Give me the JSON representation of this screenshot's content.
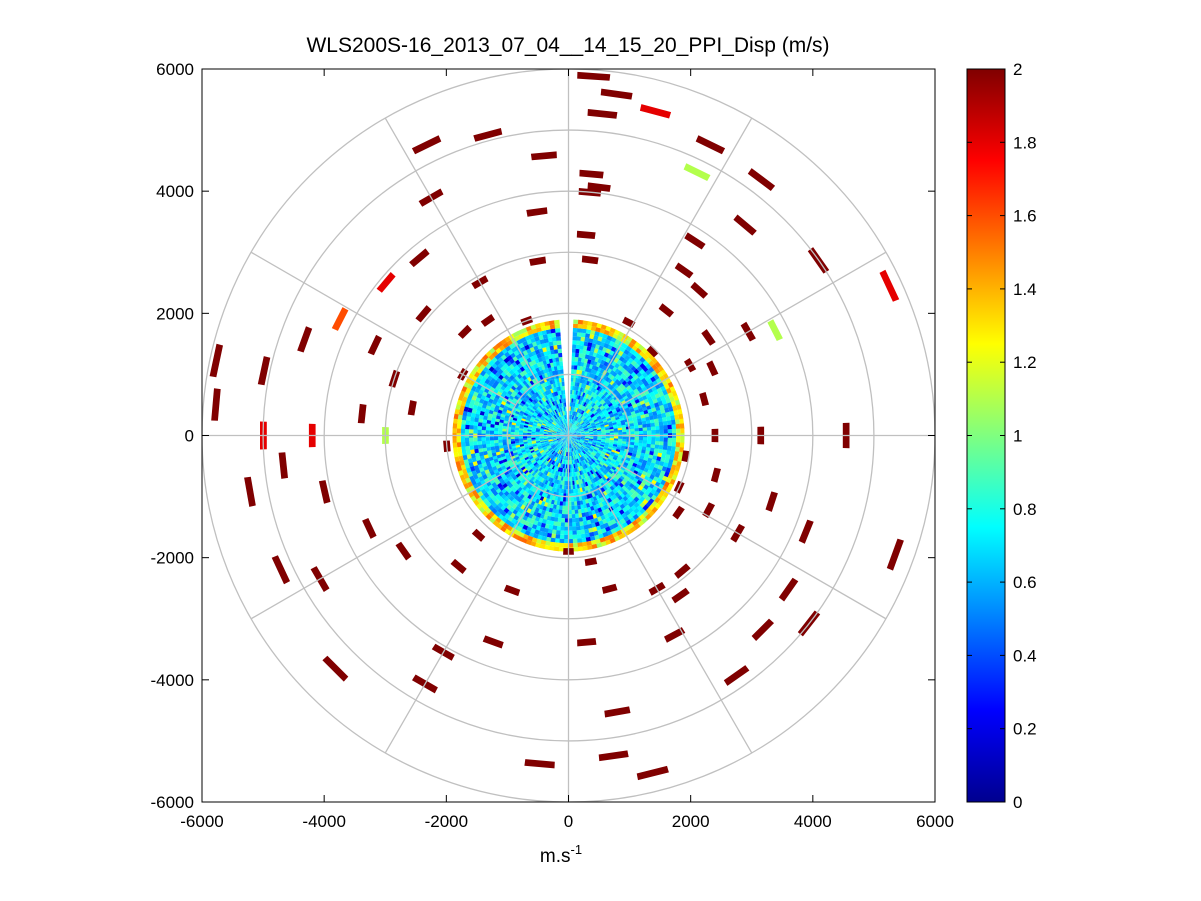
{
  "chart_data": {
    "type": "heatmap",
    "subtype": "polar PPI (plan position indicator) scan",
    "title": "WLS200S-16_2013_07_04__14_15_20_PPI_Disp (m/s)",
    "xlabel": "m.s",
    "xlabel_superscript": "-1",
    "ylabel": "",
    "xlim": [
      -6000,
      6000
    ],
    "ylim": [
      -6000,
      6000
    ],
    "x_ticks": [
      "-6000",
      "-4000",
      "-2000",
      "0",
      "2000",
      "4000",
      "6000"
    ],
    "y_ticks": [
      "6000",
      "4000",
      "2000",
      "0",
      "-2000",
      "-4000",
      "-6000"
    ],
    "polar_grid": {
      "range_rings": [
        1000,
        2000,
        3000,
        4000,
        5000,
        6000
      ],
      "spoke_angles_deg": [
        0,
        30,
        60,
        90,
        120,
        150,
        180,
        210,
        240,
        270,
        300,
        330
      ],
      "grid": true
    },
    "colorbar": {
      "colormap": "jet",
      "clim": [
        0,
        2
      ],
      "ticks": [
        "0",
        "0.2",
        "0.4",
        "0.6",
        "0.8",
        "1",
        "1.2",
        "1.4",
        "1.6",
        "1.8",
        "2"
      ],
      "placement": "right"
    },
    "data_summary": {
      "dense_region_radius": [
        0,
        1900
      ],
      "dense_region_dominant_value": 0.7,
      "dense_region_edge_value": 1.3,
      "outer_region_sparse_value": 2.0
    },
    "sparse_gates": [
      {
        "r": 5900,
        "az": 4,
        "v": 2.0
      },
      {
        "r": 5650,
        "az": 8,
        "v": 2.0
      },
      {
        "r": 5300,
        "az": 6,
        "v": 2.0
      },
      {
        "r": 5500,
        "az": 15,
        "v": 1.8
      },
      {
        "r": 5300,
        "az": 26,
        "v": 2.0
      },
      {
        "r": 5250,
        "az": 37,
        "v": 2.0
      },
      {
        "r": 4800,
        "az": 26,
        "v": 1.1
      },
      {
        "r": 4500,
        "az": 40,
        "v": 2.0
      },
      {
        "r": 5000,
        "az": 55,
        "v": 2.0
      },
      {
        "r": 5800,
        "az": 65,
        "v": 1.8
      },
      {
        "r": 3800,
        "az": 63,
        "v": 1.1
      },
      {
        "r": 4300,
        "az": 5,
        "v": 2.0
      },
      {
        "r": 4100,
        "az": 7,
        "v": 2.0
      },
      {
        "r": 3300,
        "az": 5,
        "v": 2.0
      },
      {
        "r": 2900,
        "az": 7,
        "v": 2.0
      },
      {
        "r": 3800,
        "az": 33,
        "v": 2.0
      },
      {
        "r": 3300,
        "az": 35,
        "v": 2.0
      },
      {
        "r": 3200,
        "az": 42,
        "v": 2.0
      },
      {
        "r": 2600,
        "az": 38,
        "v": 2.0
      },
      {
        "r": 2100,
        "az": 28,
        "v": 2.0
      },
      {
        "r": 2800,
        "az": 55,
        "v": 2.0
      },
      {
        "r": 3400,
        "az": 60,
        "v": 2.0
      },
      {
        "r": 2600,
        "az": 65,
        "v": 2.0
      },
      {
        "r": 2300,
        "az": 75,
        "v": 2.0
      },
      {
        "r": 4550,
        "az": 90,
        "v": 2.0
      },
      {
        "r": 3150,
        "az": 90,
        "v": 2.0
      },
      {
        "r": 2400,
        "az": 90,
        "v": 2.0
      },
      {
        "r": 4000,
        "az": 5,
        "v": 2.0
      },
      {
        "r": 5100,
        "az": -15,
        "v": 2.0
      },
      {
        "r": 5300,
        "az": -26,
        "v": 2.0
      },
      {
        "r": 4500,
        "az": -30,
        "v": 2.0
      },
      {
        "r": 3800,
        "az": -40,
        "v": 2.0
      },
      {
        "r": 3900,
        "az": -50,
        "v": 1.8
      },
      {
        "r": 2900,
        "az": -30,
        "v": 2.0
      },
      {
        "r": 2400,
        "az": -45,
        "v": 2.0
      },
      {
        "r": 2000,
        "az": -60,
        "v": 2.0
      },
      {
        "r": 4200,
        "az": -63,
        "v": 1.6
      },
      {
        "r": 3500,
        "az": -65,
        "v": 2.0
      },
      {
        "r": 3000,
        "az": -72,
        "v": 2.0
      },
      {
        "r": 4600,
        "az": -70,
        "v": 2.0
      },
      {
        "r": 5100,
        "az": -78,
        "v": 2.0
      },
      {
        "r": 5800,
        "az": -85,
        "v": 2.0
      },
      {
        "r": 5900,
        "az": -78,
        "v": 2.0
      },
      {
        "r": 3400,
        "az": -84,
        "v": 2.0
      },
      {
        "r": 2600,
        "az": -80,
        "v": 2.0
      },
      {
        "r": 5000,
        "az": -90,
        "v": 1.8
      },
      {
        "r": 4200,
        "az": -90,
        "v": 1.8
      },
      {
        "r": 3000,
        "az": -90,
        "v": 1.1
      },
      {
        "r": 4700,
        "az": -96,
        "v": 2.0
      },
      {
        "r": 5300,
        "az": -100,
        "v": 2.0
      },
      {
        "r": 4100,
        "az": -103,
        "v": 2.0
      },
      {
        "r": 5200,
        "az": -115,
        "v": 2.0
      },
      {
        "r": 4700,
        "az": -120,
        "v": 2.0
      },
      {
        "r": 3600,
        "az": -115,
        "v": 2.0
      },
      {
        "r": 3300,
        "az": -125,
        "v": 2.0
      },
      {
        "r": 2800,
        "az": -140,
        "v": 2.0
      },
      {
        "r": 2200,
        "az": -138,
        "v": 2.0
      },
      {
        "r": 5400,
        "az": -135,
        "v": 2.0
      },
      {
        "r": 4700,
        "az": -150,
        "v": 2.0
      },
      {
        "r": 4100,
        "az": -150,
        "v": 2.0
      },
      {
        "r": 3600,
        "az": -160,
        "v": 2.0
      },
      {
        "r": 2700,
        "az": -160,
        "v": 2.0
      },
      {
        "r": 5400,
        "az": -175,
        "v": 2.0
      },
      {
        "r": 5300,
        "az": 172,
        "v": 2.0
      },
      {
        "r": 5700,
        "az": 166,
        "v": 2.0
      },
      {
        "r": 4600,
        "az": 170,
        "v": 2.0
      },
      {
        "r": 3400,
        "az": 175,
        "v": 2.0
      },
      {
        "r": 2600,
        "az": 165,
        "v": 2.0
      },
      {
        "r": 2100,
        "az": 170,
        "v": 2.0
      },
      {
        "r": 3700,
        "az": 152,
        "v": 2.0
      },
      {
        "r": 3200,
        "az": 145,
        "v": 2.0
      },
      {
        "r": 2900,
        "az": 140,
        "v": 2.0
      },
      {
        "r": 4500,
        "az": 135,
        "v": 2.0
      },
      {
        "r": 5000,
        "az": 128,
        "v": 2.0
      },
      {
        "r": 4400,
        "az": 125,
        "v": 2.0
      },
      {
        "r": 3200,
        "az": 120,
        "v": 2.0
      },
      {
        "r": 2600,
        "az": 118,
        "v": 2.0
      },
      {
        "r": 2200,
        "az": 125,
        "v": 2.0
      },
      {
        "r": 3500,
        "az": 108,
        "v": 2.0
      },
      {
        "r": 2500,
        "az": 105,
        "v": 2.0
      },
      {
        "r": 2000,
        "az": 115,
        "v": 2.0
      },
      {
        "r": 4200,
        "az": 112,
        "v": 2.0
      },
      {
        "r": 5700,
        "az": 110,
        "v": 2.0
      },
      {
        "r": 1950,
        "az": 100,
        "v": 2.0
      },
      {
        "r": 2900,
        "az": 150,
        "v": 2.0
      },
      {
        "r": 4800,
        "az": 145,
        "v": 2.0
      },
      {
        "r": 2300,
        "az": 60,
        "v": 2.0
      },
      {
        "r": 1950,
        "az": 45,
        "v": 2.0
      },
      {
        "r": 2000,
        "az": -20,
        "v": 2.0
      },
      {
        "r": 4600,
        "az": -5,
        "v": 2.0
      },
      {
        "r": 3700,
        "az": -8,
        "v": 2.0
      },
      {
        "r": 2900,
        "az": -10,
        "v": 2.0
      },
      {
        "r": 2300,
        "az": -35,
        "v": 2.0
      },
      {
        "r": 3100,
        "az": -50,
        "v": 2.0
      },
      {
        "r": 2000,
        "az": -95,
        "v": 2.0
      },
      {
        "r": 1900,
        "az": 180,
        "v": 2.0
      }
    ]
  }
}
